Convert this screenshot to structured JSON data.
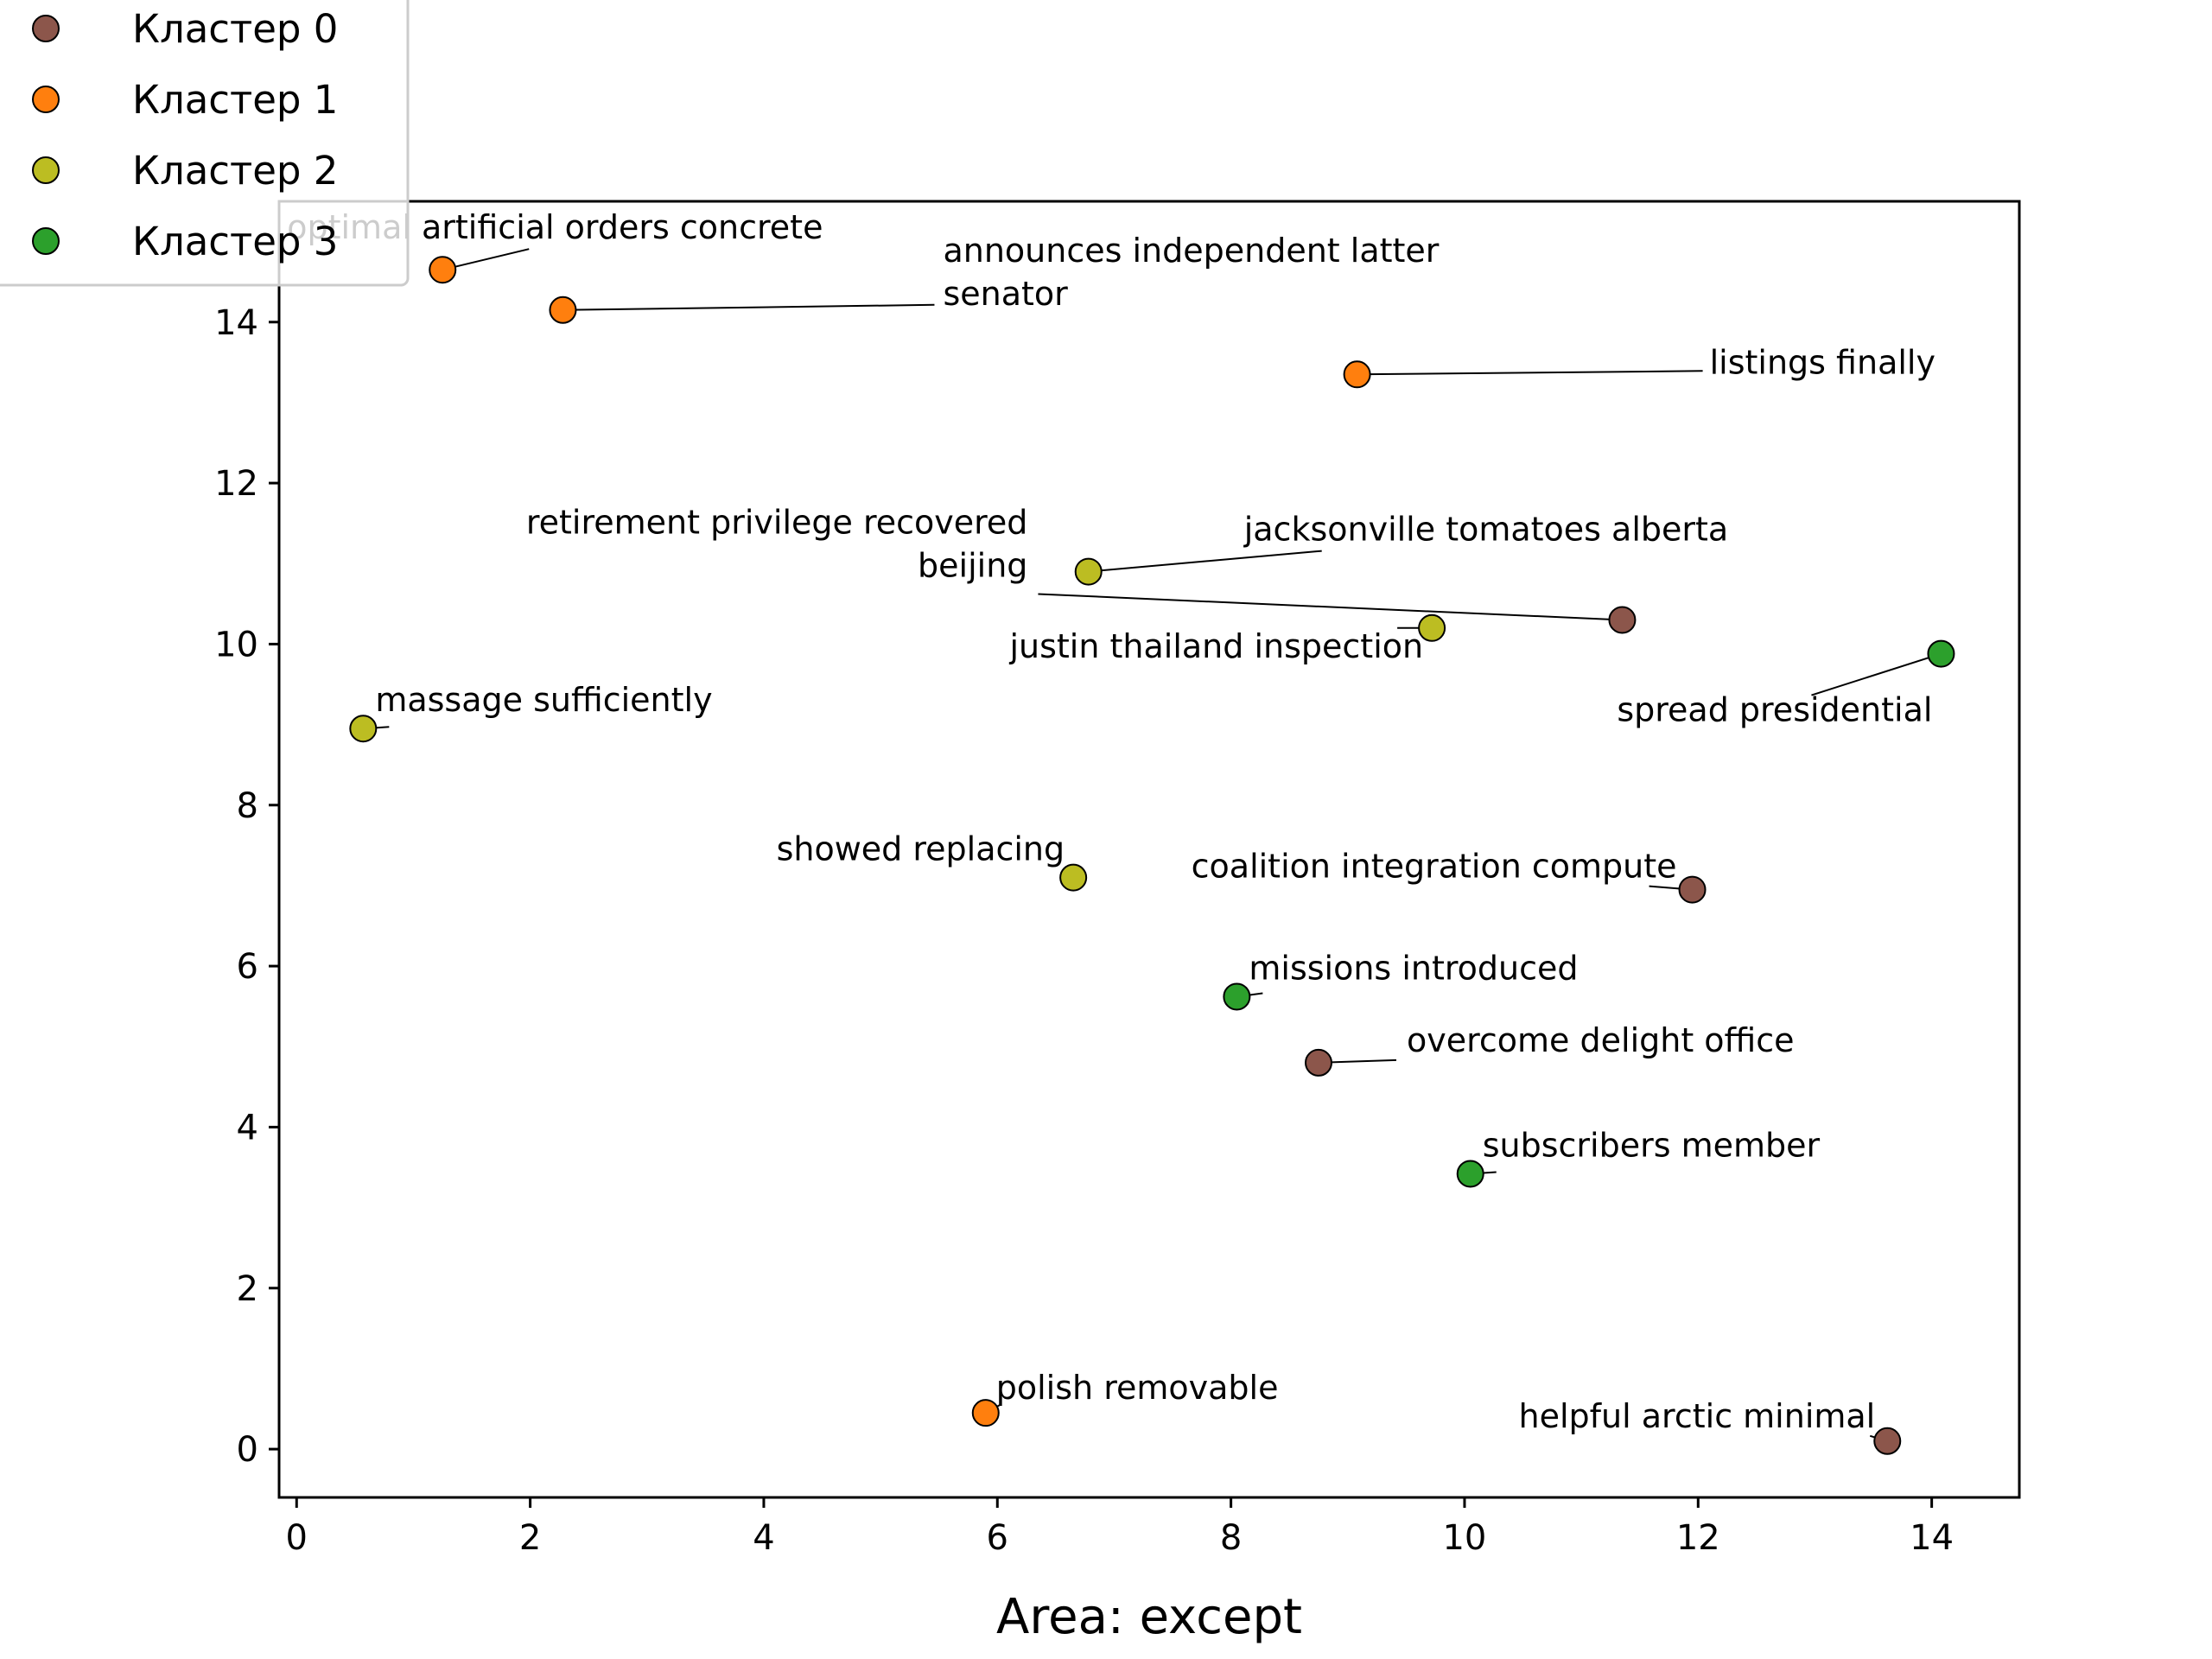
{
  "chart_data": {
    "type": "scatter",
    "title": "",
    "xlabel": "Area: except",
    "ylabel": "",
    "xlim": [
      -0.15,
      14.75
    ],
    "ylim": [
      -0.6,
      15.5
    ],
    "xticks": [
      0,
      2,
      4,
      6,
      8,
      10,
      12,
      14
    ],
    "yticks": [
      0,
      2,
      4,
      6,
      8,
      10,
      12,
      14
    ],
    "grid": false,
    "legend_position": "top-left",
    "series": [
      {
        "name": "Кластер 0",
        "color": "#8c564b",
        "points": [
          {
            "x": 11.35,
            "y": 10.3,
            "label": "retirement privilege recovered beijing",
            "label_lines": [
              "retirement privilege recovered",
              "beijing"
            ]
          },
          {
            "x": 11.95,
            "y": 6.95,
            "label": "coalition integration compute",
            "label_lines": [
              "coalition integration compute"
            ]
          },
          {
            "x": 8.75,
            "y": 4.8,
            "label": "overcome delight office",
            "label_lines": [
              "overcome delight office"
            ]
          },
          {
            "x": 13.62,
            "y": 0.1,
            "label": "helpful arctic minimal",
            "label_lines": [
              "helpful arctic minimal"
            ]
          }
        ]
      },
      {
        "name": "Кластер 1",
        "color": "#ff7f0e",
        "points": [
          {
            "x": 1.25,
            "y": 14.65,
            "label": "optimal artificial orders concrete",
            "label_lines": [
              "optimal artificial orders concrete"
            ]
          },
          {
            "x": 2.28,
            "y": 14.15,
            "label": "announces independent latter senator",
            "label_lines": [
              "announces independent latter",
              "senator"
            ]
          },
          {
            "x": 9.08,
            "y": 13.35,
            "label": "listings finally",
            "label_lines": [
              "listings finally"
            ]
          },
          {
            "x": 5.9,
            "y": 0.45,
            "label": "polish removable",
            "label_lines": [
              "polish removable"
            ]
          }
        ]
      },
      {
        "name": "Кластер 2",
        "color": "#bcbd22",
        "points": [
          {
            "x": 6.78,
            "y": 10.9,
            "label": "jacksonville tomatoes alberta",
            "label_lines": [
              "jacksonville tomatoes alberta"
            ]
          },
          {
            "x": 9.72,
            "y": 10.2,
            "label": "justin thailand inspection",
            "label_lines": [
              "justin thailand inspection"
            ]
          },
          {
            "x": 0.57,
            "y": 8.95,
            "label": "massage sufficiently",
            "label_lines": [
              "massage sufficiently"
            ]
          },
          {
            "x": 6.65,
            "y": 7.1,
            "label": "showed replacing",
            "label_lines": [
              "showed replacing"
            ]
          }
        ]
      },
      {
        "name": "Кластер 3",
        "color": "#2ca02c",
        "points": [
          {
            "x": 14.08,
            "y": 9.88,
            "label": "spread presidential",
            "label_lines": [
              "spread presidential"
            ]
          },
          {
            "x": 8.05,
            "y": 5.62,
            "label": "missions introduced",
            "label_lines": [
              "missions introduced"
            ]
          },
          {
            "x": 10.05,
            "y": 3.42,
            "label": "subscribers member",
            "label_lines": [
              "subscribers member"
            ]
          }
        ]
      }
    ]
  }
}
